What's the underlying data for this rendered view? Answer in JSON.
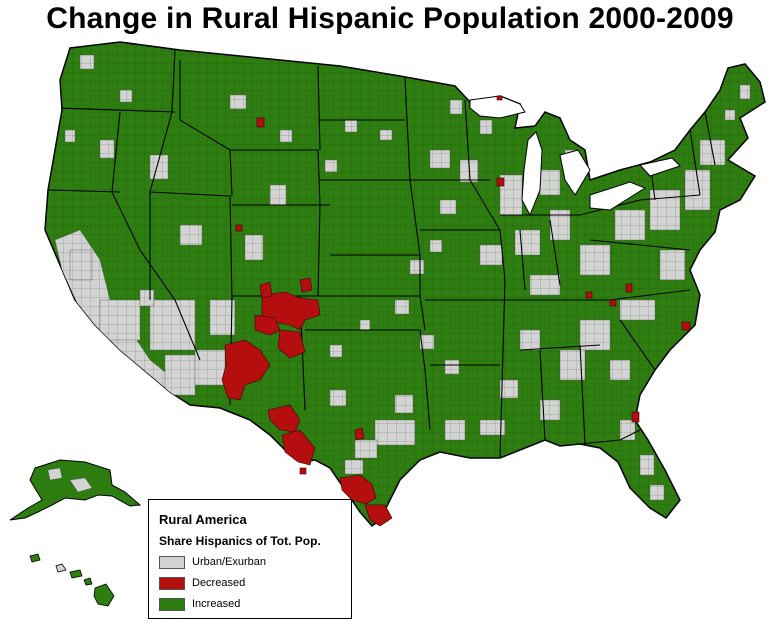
{
  "title": "Change in Rural Hispanic Population 2000-2009",
  "legend": {
    "title": "Rural America",
    "subtitle": "Share Hispanics of Tot. Pop.",
    "items": [
      {
        "label": "Urban/Exurban",
        "color": "#d3d3d3"
      },
      {
        "label": "Decreased",
        "color": "#b50e0e"
      },
      {
        "label": "Increased",
        "color": "#2e7d10"
      }
    ]
  },
  "colors": {
    "increased": "#2e7d10",
    "decreased": "#b50e0e",
    "urban": "#d3d3d3",
    "border": "#000000",
    "background": "#ffffff"
  }
}
